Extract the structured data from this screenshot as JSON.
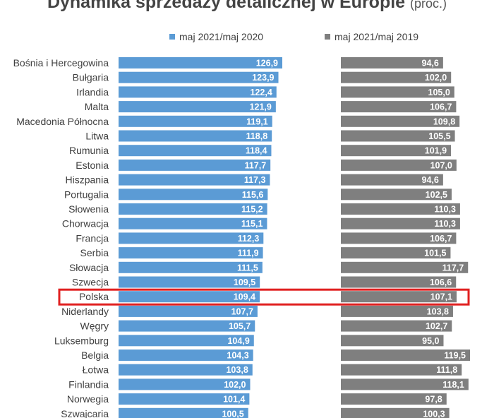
{
  "colors": {
    "series1": "#5B9BD5",
    "series2": "#7F7F7F",
    "highlight": "#E02020"
  },
  "chart_data": {
    "type": "bar",
    "orientation": "horizontal",
    "title": "Dynamika sprzedaży detalicznej w Europie",
    "subtitle": "(proc.)",
    "legend_position": "top",
    "highlighted_category": "Polska",
    "categories": [
      "Bośnia i Hercegowina",
      "Bułgaria",
      "Irlandia",
      "Malta",
      "Macedonia Północna",
      "Litwa",
      "Rumunia",
      "Estonia",
      "Hiszpania",
      "Portugalia",
      "Słowenia",
      "Chorwacja",
      "Francja",
      "Serbia",
      "Słowacja",
      "Szwecja",
      "Polska",
      "Niderlandy",
      "Węgry",
      "Luksemburg",
      "Belgia",
      "Łotwa",
      "Finlandia",
      "Norwegia",
      "Szwajcaria"
    ],
    "series": [
      {
        "name": "maj 2021/maj 2020",
        "values": [
          126.9,
          123.9,
          122.4,
          121.9,
          119.1,
          118.8,
          118.4,
          117.7,
          117.3,
          115.6,
          115.2,
          115.1,
          112.3,
          111.9,
          111.5,
          109.5,
          109.4,
          107.7,
          105.7,
          104.9,
          104.3,
          103.8,
          102.0,
          101.4,
          100.5
        ]
      },
      {
        "name": "maj 2021/maj 2019",
        "values": [
          94.6,
          102.0,
          105.0,
          106.7,
          109.8,
          105.5,
          101.9,
          107.0,
          94.6,
          102.5,
          110.3,
          110.3,
          106.7,
          101.5,
          117.7,
          106.6,
          107.1,
          103.8,
          102.7,
          95.0,
          119.5,
          111.8,
          118.1,
          97.8,
          100.3
        ]
      }
    ],
    "value_format": "decimal_comma_1"
  }
}
